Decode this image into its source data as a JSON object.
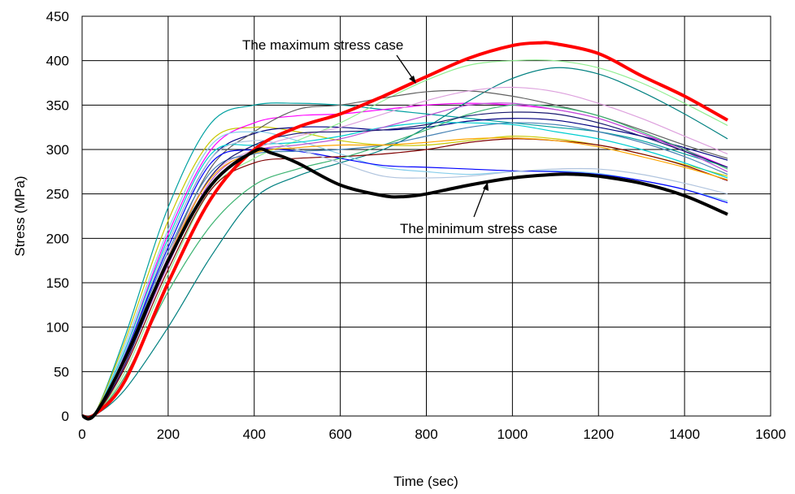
{
  "chart_data": {
    "type": "line",
    "xlabel": "Time (sec)",
    "ylabel": "Stress (MPa)",
    "xlim": [
      0,
      1600
    ],
    "ylim": [
      0,
      450
    ],
    "xticks": [
      0,
      200,
      400,
      600,
      800,
      1000,
      1200,
      1400,
      1600
    ],
    "yticks": [
      0,
      50,
      100,
      150,
      200,
      250,
      300,
      350,
      400,
      450
    ],
    "grid": true,
    "legend": "none",
    "annotations": [
      {
        "text": "The maximum stress case",
        "target": [
          1000,
          402
        ]
      },
      {
        "text": "The minimum stress case",
        "target": [
          880,
          257
        ]
      }
    ],
    "series": [
      {
        "color": "#ff0000",
        "bold": true,
        "x": [
          0,
          30,
          100,
          200,
          300,
          400,
          500,
          600,
          700,
          800,
          900,
          1000,
          1060,
          1100,
          1200,
          1300,
          1400,
          1500
        ],
        "y": [
          0,
          2,
          40,
          150,
          245,
          300,
          325,
          340,
          360,
          382,
          403,
          417,
          420,
          419,
          408,
          383,
          360,
          333
        ]
      },
      {
        "color": "#000000",
        "bold": true,
        "x": [
          0,
          30,
          100,
          200,
          300,
          400,
          440,
          500,
          600,
          700,
          750,
          800,
          900,
          1000,
          1100,
          1150,
          1200,
          1300,
          1400,
          1500
        ],
        "y": [
          0,
          2,
          65,
          175,
          260,
          298,
          296,
          285,
          260,
          248,
          247,
          250,
          260,
          268,
          272,
          272,
          270,
          262,
          248,
          227
        ]
      },
      {
        "color": "#00a0a0",
        "x": [
          0,
          30,
          100,
          200,
          300,
          400,
          500,
          600,
          700,
          800,
          900,
          1000,
          1100,
          1200,
          1300,
          1400,
          1500
        ],
        "y": [
          0,
          3,
          90,
          235,
          330,
          350,
          352,
          350,
          345,
          340,
          335,
          330,
          325,
          320,
          310,
          295,
          280
        ]
      },
      {
        "color": "#c8c800",
        "x": [
          0,
          30,
          100,
          200,
          300,
          400,
          500,
          600,
          700,
          800,
          900,
          1000,
          1100,
          1200,
          1300,
          1400,
          1500
        ],
        "y": [
          0,
          3,
          85,
          220,
          310,
          325,
          320,
          310,
          305,
          305,
          310,
          315,
          312,
          305,
          295,
          283,
          270
        ]
      },
      {
        "color": "#ff00ff",
        "x": [
          0,
          30,
          100,
          200,
          300,
          400,
          500,
          600,
          700,
          800,
          900,
          1000,
          1100,
          1200,
          1300,
          1400,
          1500
        ],
        "y": [
          0,
          2,
          75,
          205,
          300,
          330,
          338,
          340,
          345,
          350,
          352,
          350,
          345,
          335,
          318,
          300,
          280
        ]
      },
      {
        "color": "#000080",
        "x": [
          0,
          30,
          100,
          200,
          300,
          400,
          500,
          600,
          700,
          800,
          900,
          1000,
          1100,
          1200,
          1300,
          1400,
          1500
        ],
        "y": [
          0,
          2,
          70,
          195,
          290,
          318,
          325,
          325,
          322,
          325,
          332,
          335,
          333,
          325,
          315,
          302,
          288
        ]
      },
      {
        "color": "#008080",
        "x": [
          0,
          30,
          100,
          200,
          300,
          400,
          500,
          600,
          700,
          800,
          900,
          1000,
          1100,
          1200,
          1300,
          1400,
          1500
        ],
        "y": [
          0,
          1,
          30,
          100,
          180,
          245,
          270,
          285,
          300,
          325,
          355,
          380,
          392,
          385,
          365,
          340,
          312
        ]
      },
      {
        "color": "#90ee90",
        "x": [
          0,
          30,
          100,
          200,
          300,
          400,
          500,
          600,
          700,
          800,
          900,
          1000,
          1100,
          1200,
          1300,
          1400,
          1500
        ],
        "y": [
          0,
          2,
          50,
          160,
          255,
          290,
          310,
          330,
          355,
          378,
          395,
          400,
          400,
          392,
          375,
          352,
          327
        ]
      },
      {
        "color": "#606060",
        "x": [
          0,
          30,
          100,
          200,
          300,
          400,
          500,
          600,
          700,
          800,
          900,
          1000,
          1100,
          1200,
          1300,
          1400,
          1500
        ],
        "y": [
          0,
          2,
          60,
          180,
          280,
          320,
          345,
          350,
          358,
          365,
          366,
          360,
          350,
          338,
          322,
          305,
          290
        ]
      },
      {
        "color": "#87ceeb",
        "x": [
          0,
          30,
          100,
          200,
          300,
          400,
          500,
          600,
          700,
          800,
          900,
          1000,
          1100,
          1200,
          1300,
          1400,
          1500
        ],
        "y": [
          0,
          2,
          80,
          210,
          305,
          320,
          310,
          295,
          280,
          275,
          272,
          275,
          276,
          273,
          265,
          255,
          242
        ]
      },
      {
        "color": "#0000ff",
        "x": [
          0,
          30,
          100,
          200,
          300,
          400,
          500,
          600,
          700,
          800,
          900,
          1000,
          1100,
          1200,
          1300,
          1400,
          1500
        ],
        "y": [
          0,
          2,
          70,
          190,
          285,
          300,
          298,
          290,
          282,
          280,
          278,
          276,
          275,
          272,
          265,
          255,
          240
        ]
      },
      {
        "color": "#00ced1",
        "x": [
          0,
          30,
          100,
          200,
          300,
          400,
          500,
          600,
          700,
          800,
          900,
          1000,
          1100,
          1200,
          1300,
          1400,
          1500
        ],
        "y": [
          0,
          2,
          75,
          200,
          295,
          305,
          308,
          315,
          325,
          330,
          330,
          328,
          320,
          312,
          300,
          285,
          268
        ]
      },
      {
        "color": "#800000",
        "x": [
          0,
          30,
          100,
          200,
          300,
          400,
          500,
          600,
          700,
          800,
          900,
          1000,
          1100,
          1200,
          1300,
          1400,
          1500
        ],
        "y": [
          0,
          1,
          55,
          165,
          255,
          285,
          290,
          292,
          295,
          300,
          308,
          312,
          310,
          305,
          295,
          282,
          265
        ]
      },
      {
        "color": "#dda0dd",
        "x": [
          0,
          30,
          100,
          200,
          300,
          400,
          500,
          600,
          700,
          800,
          900,
          1000,
          1100,
          1200,
          1300,
          1400,
          1500
        ],
        "y": [
          0,
          2,
          65,
          180,
          270,
          300,
          315,
          325,
          340,
          355,
          366,
          370,
          365,
          352,
          335,
          315,
          295
        ]
      },
      {
        "color": "#3cb371",
        "x": [
          0,
          30,
          100,
          200,
          300,
          400,
          500,
          600,
          700,
          800,
          900,
          1000,
          1100,
          1200,
          1300,
          1400,
          1500
        ],
        "y": [
          0,
          1,
          45,
          140,
          215,
          260,
          278,
          290,
          305,
          322,
          340,
          350,
          348,
          338,
          320,
          300,
          278
        ]
      },
      {
        "color": "#ba55d3",
        "x": [
          0,
          30,
          100,
          200,
          300,
          400,
          500,
          600,
          700,
          800,
          900,
          1000,
          1100,
          1200,
          1300,
          1400,
          1500
        ],
        "y": [
          0,
          2,
          60,
          170,
          265,
          298,
          305,
          312,
          325,
          338,
          350,
          352,
          345,
          335,
          318,
          298,
          275
        ]
      },
      {
        "color": "#4682b4",
        "x": [
          0,
          30,
          100,
          200,
          300,
          400,
          500,
          600,
          700,
          800,
          900,
          1000,
          1100,
          1200,
          1300,
          1400,
          1500
        ],
        "y": [
          0,
          2,
          68,
          185,
          275,
          295,
          298,
          300,
          305,
          315,
          325,
          330,
          328,
          320,
          308,
          292,
          272
        ]
      },
      {
        "color": "#b0c4de",
        "x": [
          0,
          30,
          100,
          200,
          300,
          400,
          500,
          600,
          700,
          800,
          900,
          1000,
          1100,
          1200,
          1300,
          1400,
          1500
        ],
        "y": [
          0,
          2,
          72,
          195,
          290,
          310,
          300,
          285,
          270,
          268,
          270,
          275,
          278,
          278,
          272,
          262,
          250
        ]
      },
      {
        "color": "#191970",
        "x": [
          0,
          30,
          100,
          200,
          300,
          400,
          500,
          600,
          700,
          800,
          900,
          1000,
          1100,
          1200,
          1300,
          1400,
          1500
        ],
        "y": [
          0,
          2,
          58,
          175,
          270,
          305,
          318,
          320,
          322,
          328,
          338,
          342,
          340,
          330,
          315,
          298,
          280
        ]
      },
      {
        "color": "#ffa500",
        "x": [
          0,
          30,
          100,
          200,
          300,
          400,
          500,
          600,
          700,
          800,
          900,
          1000,
          1100,
          1200,
          1300,
          1400,
          1500
        ],
        "y": [
          0,
          2,
          62,
          178,
          268,
          296,
          302,
          305,
          305,
          308,
          312,
          313,
          310,
          303,
          292,
          280,
          266
        ]
      }
    ]
  }
}
